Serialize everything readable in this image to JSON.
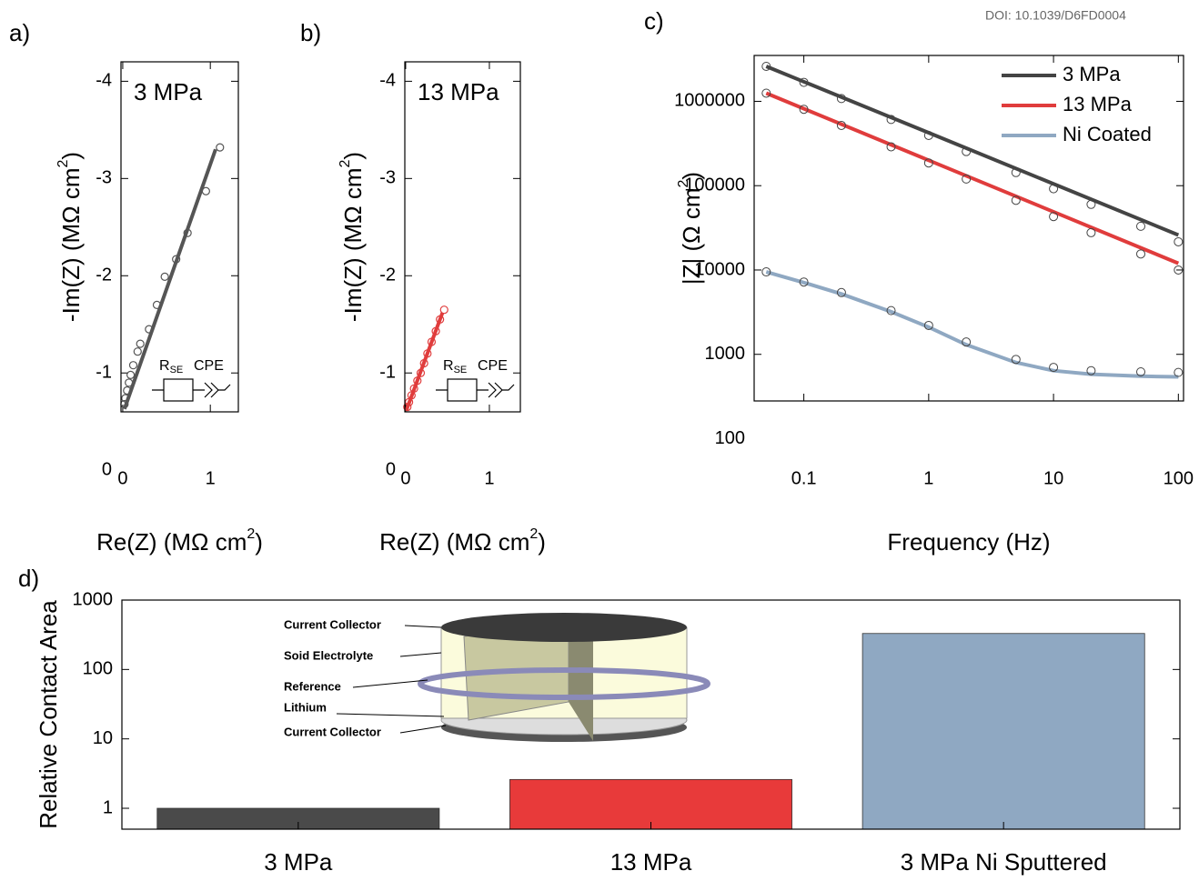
{
  "doi": "DOI: 10.1039/D6FD0004",
  "chart_data": [
    {
      "type": "scatter",
      "panel_label": "a)",
      "annotation": "3 MPa",
      "circuit_labels": [
        "R",
        "SE",
        "CPE"
      ],
      "xlabel": [
        "Re(Z) (MΩ cm",
        "2",
        ")"
      ],
      "ylabel": [
        "-Im(Z) (MΩ cm",
        "2",
        ")"
      ],
      "xlim": [
        -0.02,
        1.32
      ],
      "ylim": [
        -0.6,
        -4.2
      ],
      "xticks": [
        0,
        1
      ],
      "yticks": [
        -4,
        -3,
        -2,
        -1,
        0
      ],
      "series": [
        {
          "color": "#555555",
          "marker": "circle",
          "x": [
            1.11,
            0.95,
            0.74,
            0.61,
            0.48,
            0.39,
            0.3,
            0.2,
            0.17,
            0.12,
            0.09,
            0.07,
            0.05,
            0.03,
            0.02
          ],
          "values": [
            -3.32,
            -2.87,
            -2.44,
            -2.17,
            -1.99,
            -1.7,
            -1.45,
            -1.3,
            -1.22,
            -1.08,
            -0.98,
            -0.9,
            -0.82,
            -0.74,
            -0.68
          ]
        },
        {
          "color": "#555555",
          "marker": "none",
          "x": [
            0.02,
            1.06
          ],
          "values": [
            -0.63,
            -3.3
          ]
        }
      ]
    },
    {
      "type": "scatter",
      "panel_label": "b)",
      "annotation": "13 MPa",
      "circuit_labels": [
        "R",
        "SE",
        "CPE"
      ],
      "xlabel": [
        "Re(Z) (MΩ cm",
        "2",
        ")"
      ],
      "ylabel": [
        "-Im(Z) (MΩ cm",
        "2",
        ")"
      ],
      "xlim": [
        -0.01,
        1.37
      ],
      "ylim": [
        -0.6,
        -4.2
      ],
      "xticks": [
        0,
        1
      ],
      "yticks": [
        -4,
        -3,
        -2,
        -1,
        0
      ],
      "series": [
        {
          "color": "#e03c3c",
          "marker": "circle",
          "x": [
            0.46,
            0.41,
            0.36,
            0.31,
            0.26,
            0.22,
            0.18,
            0.14,
            0.1,
            0.07,
            0.04,
            0.02
          ],
          "values": [
            -1.65,
            -1.55,
            -1.43,
            -1.32,
            -1.2,
            -1.1,
            -1.0,
            -0.92,
            -0.84,
            -0.77,
            -0.7,
            -0.65
          ]
        },
        {
          "color": "#e03c3c",
          "marker": "none",
          "x": [
            0.01,
            0.44
          ],
          "values": [
            -0.62,
            -1.62
          ]
        }
      ]
    },
    {
      "type": "line",
      "panel_label": "c)",
      "legend": "top-right",
      "xlabel": "Frequency (Hz)",
      "ylabel": [
        "|Z| (Ω cm",
        "2",
        ")"
      ],
      "xscale": "log",
      "yscale": "log",
      "xlim": [
        0.04,
        110
      ],
      "ylim": [
        280,
        3500000
      ],
      "xticks": [
        0.1,
        1,
        10,
        100
      ],
      "yticks": [
        100,
        1000,
        10000,
        100000,
        1000000
      ],
      "series": [
        {
          "name": "3 MPa",
          "color": "#444444",
          "x": [
            0.05,
            0.1,
            0.2,
            0.5,
            1,
            2,
            5,
            10,
            20,
            50,
            100
          ],
          "values": [
            2600000,
            1680000,
            1080000,
            610000,
            394000,
            254000,
            143000,
            92000,
            60000,
            33000,
            21600
          ],
          "fit_x": [
            0.05,
            1,
            100
          ],
          "fit_values": [
            2600000,
            424000,
            26000
          ]
        },
        {
          "name": "13 MPa",
          "color": "#e03c3c",
          "x": [
            0.05,
            0.1,
            0.2,
            0.5,
            1,
            2,
            5,
            10,
            20,
            50,
            100
          ],
          "values": [
            1250000,
            805000,
            518000,
            289000,
            186000,
            120000,
            67000,
            43000,
            27700,
            15500,
            10000
          ],
          "fit_x": [
            0.05,
            1,
            100
          ],
          "fit_values": [
            1250000,
            200000,
            12000
          ]
        },
        {
          "name": "Ni Coated",
          "color": "#8fa8c2",
          "x": [
            0.05,
            0.1,
            0.2,
            0.5,
            1,
            2,
            5,
            10,
            20,
            50,
            100
          ],
          "values": [
            9500,
            7200,
            5400,
            3300,
            2200,
            1400,
            870,
            700,
            640,
            620,
            610
          ],
          "fit_x": [
            0.05,
            0.1,
            0.2,
            0.5,
            1,
            2,
            5,
            10,
            20,
            50,
            100
          ],
          "fit_values": [
            9500,
            7100,
            5200,
            3200,
            2100,
            1300,
            800,
            640,
            580,
            550,
            540
          ]
        }
      ]
    },
    {
      "type": "bar",
      "panel_label": "d)",
      "ylabel": "Relative Contact Area",
      "yscale": "log",
      "categories": [
        "3 MPa",
        "13 MPa",
        "3 MPa Ni Sputtered"
      ],
      "values": [
        1,
        2.6,
        330
      ],
      "colors": [
        "#4a4a4a",
        "#e83a3a",
        "#8fa8c2"
      ],
      "ylim": [
        0.5,
        1000
      ],
      "yticks": [
        1,
        10,
        100,
        1000
      ],
      "inset_labels": [
        "Current Collector",
        "Soid Electrolyte",
        "Reference",
        "Lithium",
        "Current Collector"
      ]
    }
  ]
}
